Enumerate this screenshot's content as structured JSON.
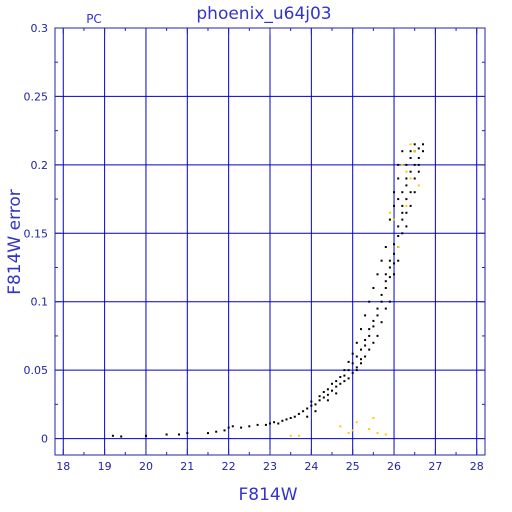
{
  "chart_data": {
    "type": "scatter",
    "title": "phoenix_u64j03",
    "corner_label": "PC",
    "xlabel": "F814W",
    "ylabel": "F814W error",
    "xlim": [
      17.8,
      28.2
    ],
    "ylim": [
      -0.012,
      0.3
    ],
    "x_ticks": [
      18,
      19,
      20,
      21,
      22,
      23,
      24,
      25,
      26,
      27,
      28
    ],
    "x_tick_labels": [
      "18",
      "19",
      "20",
      "21",
      "22",
      "23",
      "24",
      "25",
      "26",
      "27",
      "28"
    ],
    "y_ticks": [
      0,
      0.05,
      0.1,
      0.15,
      0.2,
      0.25,
      0.3
    ],
    "y_tick_labels": [
      "0",
      "0.05",
      "0.1",
      "0.15",
      "0.2",
      "0.25",
      "0.3"
    ],
    "grid": true,
    "colors": {
      "frame": "#2222aa",
      "grid": "#0000cc",
      "text": "#3333cc",
      "main_points": "#000000",
      "flagged_points": "#ffcc00"
    },
    "series": [
      {
        "color": "#000000",
        "points": [
          [
            19.2,
            0.002
          ],
          [
            19.4,
            0.0015
          ],
          [
            20.0,
            0.002
          ],
          [
            20.5,
            0.003
          ],
          [
            20.8,
            0.003
          ],
          [
            21.0,
            0.004
          ],
          [
            21.5,
            0.004
          ],
          [
            21.7,
            0.005
          ],
          [
            21.9,
            0.006
          ],
          [
            22.0,
            0.008
          ],
          [
            22.1,
            0.009
          ],
          [
            22.3,
            0.008
          ],
          [
            22.5,
            0.009
          ],
          [
            22.7,
            0.01
          ],
          [
            22.9,
            0.01
          ],
          [
            23.0,
            0.011
          ],
          [
            23.1,
            0.012
          ],
          [
            23.2,
            0.011
          ],
          [
            23.3,
            0.013
          ],
          [
            23.4,
            0.014
          ],
          [
            23.5,
            0.015
          ],
          [
            23.6,
            0.016
          ],
          [
            23.7,
            0.018
          ],
          [
            23.8,
            0.02
          ],
          [
            23.9,
            0.022
          ],
          [
            24.0,
            0.024
          ],
          [
            24.0,
            0.027
          ],
          [
            24.1,
            0.025
          ],
          [
            24.2,
            0.028
          ],
          [
            24.3,
            0.03
          ],
          [
            24.4,
            0.032
          ],
          [
            24.4,
            0.036
          ],
          [
            24.5,
            0.035
          ],
          [
            24.6,
            0.033
          ],
          [
            24.6,
            0.038
          ],
          [
            24.7,
            0.04
          ],
          [
            24.8,
            0.042
          ],
          [
            24.8,
            0.046
          ],
          [
            24.9,
            0.05
          ],
          [
            24.9,
            0.044
          ],
          [
            25.0,
            0.048
          ],
          [
            25.0,
            0.055
          ],
          [
            25.1,
            0.052
          ],
          [
            25.1,
            0.06
          ],
          [
            25.2,
            0.058
          ],
          [
            25.2,
            0.065
          ],
          [
            25.3,
            0.068
          ],
          [
            25.3,
            0.072
          ],
          [
            25.4,
            0.075
          ],
          [
            25.4,
            0.08
          ],
          [
            25.5,
            0.082
          ],
          [
            25.5,
            0.086
          ],
          [
            25.6,
            0.09
          ],
          [
            25.6,
            0.095
          ],
          [
            25.7,
            0.1
          ],
          [
            25.7,
            0.105
          ],
          [
            25.8,
            0.11
          ],
          [
            25.8,
            0.115
          ],
          [
            25.8,
            0.12
          ],
          [
            25.9,
            0.118
          ],
          [
            25.9,
            0.125
          ],
          [
            25.9,
            0.13
          ],
          [
            26.0,
            0.128
          ],
          [
            26.0,
            0.135
          ],
          [
            26.0,
            0.142
          ],
          [
            26.1,
            0.14
          ],
          [
            26.1,
            0.148
          ],
          [
            26.1,
            0.155
          ],
          [
            26.2,
            0.16
          ],
          [
            26.2,
            0.165
          ],
          [
            26.2,
            0.17
          ],
          [
            26.2,
            0.18
          ],
          [
            26.3,
            0.175
          ],
          [
            26.3,
            0.185
          ],
          [
            26.3,
            0.19
          ],
          [
            26.3,
            0.2
          ],
          [
            26.4,
            0.195
          ],
          [
            26.4,
            0.205
          ],
          [
            26.4,
            0.21
          ],
          [
            26.5,
            0.2
          ],
          [
            26.5,
            0.21
          ],
          [
            26.5,
            0.215
          ],
          [
            26.6,
            0.205
          ],
          [
            26.6,
            0.212
          ],
          [
            26.7,
            0.21
          ],
          [
            26.1,
            0.2
          ],
          [
            26.2,
            0.21
          ],
          [
            26.1,
            0.19
          ],
          [
            26.0,
            0.17
          ],
          [
            25.9,
            0.16
          ],
          [
            25.8,
            0.14
          ],
          [
            25.7,
            0.13
          ],
          [
            25.6,
            0.12
          ],
          [
            25.5,
            0.11
          ],
          [
            25.4,
            0.1
          ],
          [
            25.3,
            0.09
          ],
          [
            25.2,
            0.08
          ],
          [
            25.1,
            0.07
          ],
          [
            25.0,
            0.062
          ],
          [
            24.9,
            0.056
          ],
          [
            24.8,
            0.05
          ],
          [
            24.7,
            0.045
          ],
          [
            24.6,
            0.042
          ],
          [
            24.5,
            0.04
          ],
          [
            24.3,
            0.034
          ],
          [
            24.2,
            0.031
          ],
          [
            23.9,
            0.016
          ],
          [
            24.1,
            0.02
          ],
          [
            24.4,
            0.028
          ],
          [
            26.3,
            0.165
          ],
          [
            26.4,
            0.18
          ],
          [
            26.5,
            0.19
          ],
          [
            26.6,
            0.195
          ],
          [
            26.2,
            0.15
          ],
          [
            26.3,
            0.155
          ],
          [
            26.0,
            0.12
          ],
          [
            26.1,
            0.13
          ],
          [
            25.9,
            0.1
          ],
          [
            25.8,
            0.095
          ],
          [
            25.7,
            0.085
          ],
          [
            25.6,
            0.075
          ],
          [
            25.5,
            0.07
          ],
          [
            25.4,
            0.065
          ],
          [
            25.3,
            0.06
          ],
          [
            25.2,
            0.055
          ],
          [
            25.1,
            0.05
          ],
          [
            26.6,
            0.2
          ],
          [
            26.7,
            0.215
          ],
          [
            26.4,
            0.17
          ],
          [
            26.5,
            0.18
          ],
          [
            26.0,
            0.18
          ],
          [
            26.1,
            0.175
          ]
        ]
      },
      {
        "color": "#ffcc00",
        "points": [
          [
            23.5,
            0.002
          ],
          [
            23.7,
            0.002
          ],
          [
            24.7,
            0.009
          ],
          [
            24.9,
            0.004
          ],
          [
            25.0,
            0.006
          ],
          [
            25.1,
            0.012
          ],
          [
            25.4,
            0.007
          ],
          [
            25.5,
            0.015
          ],
          [
            25.6,
            0.004
          ],
          [
            25.8,
            0.003
          ],
          [
            26.0,
            0.16
          ],
          [
            26.2,
            0.2
          ],
          [
            26.3,
            0.17
          ],
          [
            26.4,
            0.19
          ],
          [
            26.5,
            0.21
          ],
          [
            26.6,
            0.185
          ],
          [
            26.1,
            0.14
          ],
          [
            25.9,
            0.165
          ],
          [
            26.3,
            0.195
          ],
          [
            26.4,
            0.215
          ]
        ]
      }
    ]
  }
}
